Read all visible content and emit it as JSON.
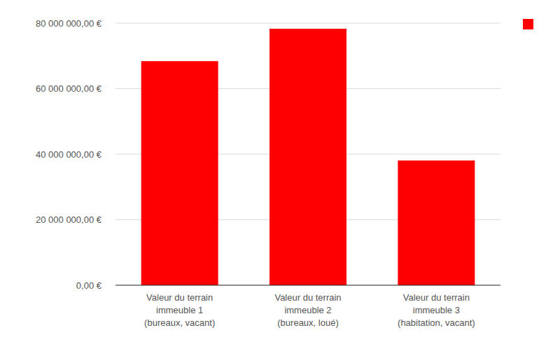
{
  "chart_data": {
    "type": "bar",
    "categories": [
      "Valeur du terrain immeuble 1 (bureaux, vacant)",
      "Valeur du terrain immeuble 2 (bureaux, loué)",
      "Valeur du terrain immeuble 3 (habitation, vacant)"
    ],
    "values": [
      68400000,
      78300000,
      38100000
    ],
    "color": "#ff0000",
    "ylim": [
      0,
      80000000
    ],
    "yticks": [
      {
        "value": 0,
        "label": "0,00 €"
      },
      {
        "value": 20000000,
        "label": "20 000 000,00 €"
      },
      {
        "value": 40000000,
        "label": "40 000 000,00 €"
      },
      {
        "value": 60000000,
        "label": "60 000 000,00 €"
      },
      {
        "value": 80000000,
        "label": "80 000 000,00 €"
      }
    ],
    "grid": true,
    "legend": "top-right"
  }
}
